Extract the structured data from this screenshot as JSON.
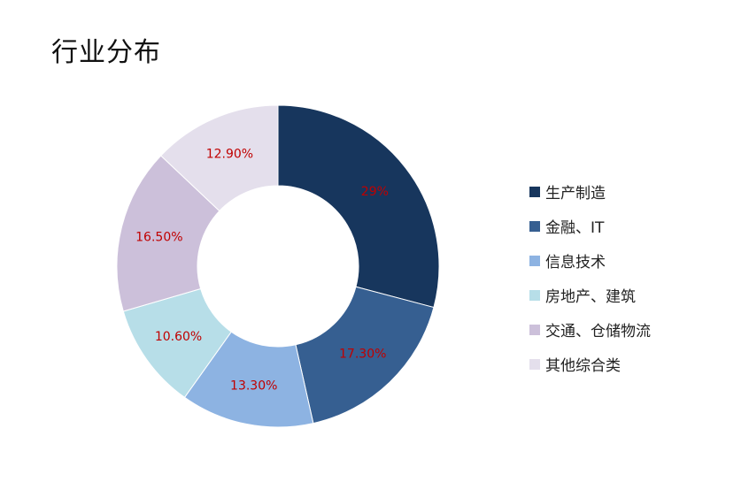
{
  "title": "行业分布",
  "chart_data": {
    "type": "pie",
    "donut": true,
    "legend_position": "right",
    "label_color": "#C00000",
    "categories": [
      "生产制造",
      "金融、IT",
      "信息技术",
      "房地产、建筑",
      "交通、仓储物流",
      "其他综合类"
    ],
    "values": [
      29,
      17.3,
      13.3,
      10.6,
      16.5,
      12.9
    ],
    "labels": [
      "29%",
      "17.30%",
      "13.30%",
      "10.60%",
      "16.50%",
      "12.90%"
    ],
    "colors": [
      "#17365D",
      "#365F91",
      "#8DB3E2",
      "#B7DEE8",
      "#CCC0DA",
      "#E4DFEC"
    ]
  }
}
